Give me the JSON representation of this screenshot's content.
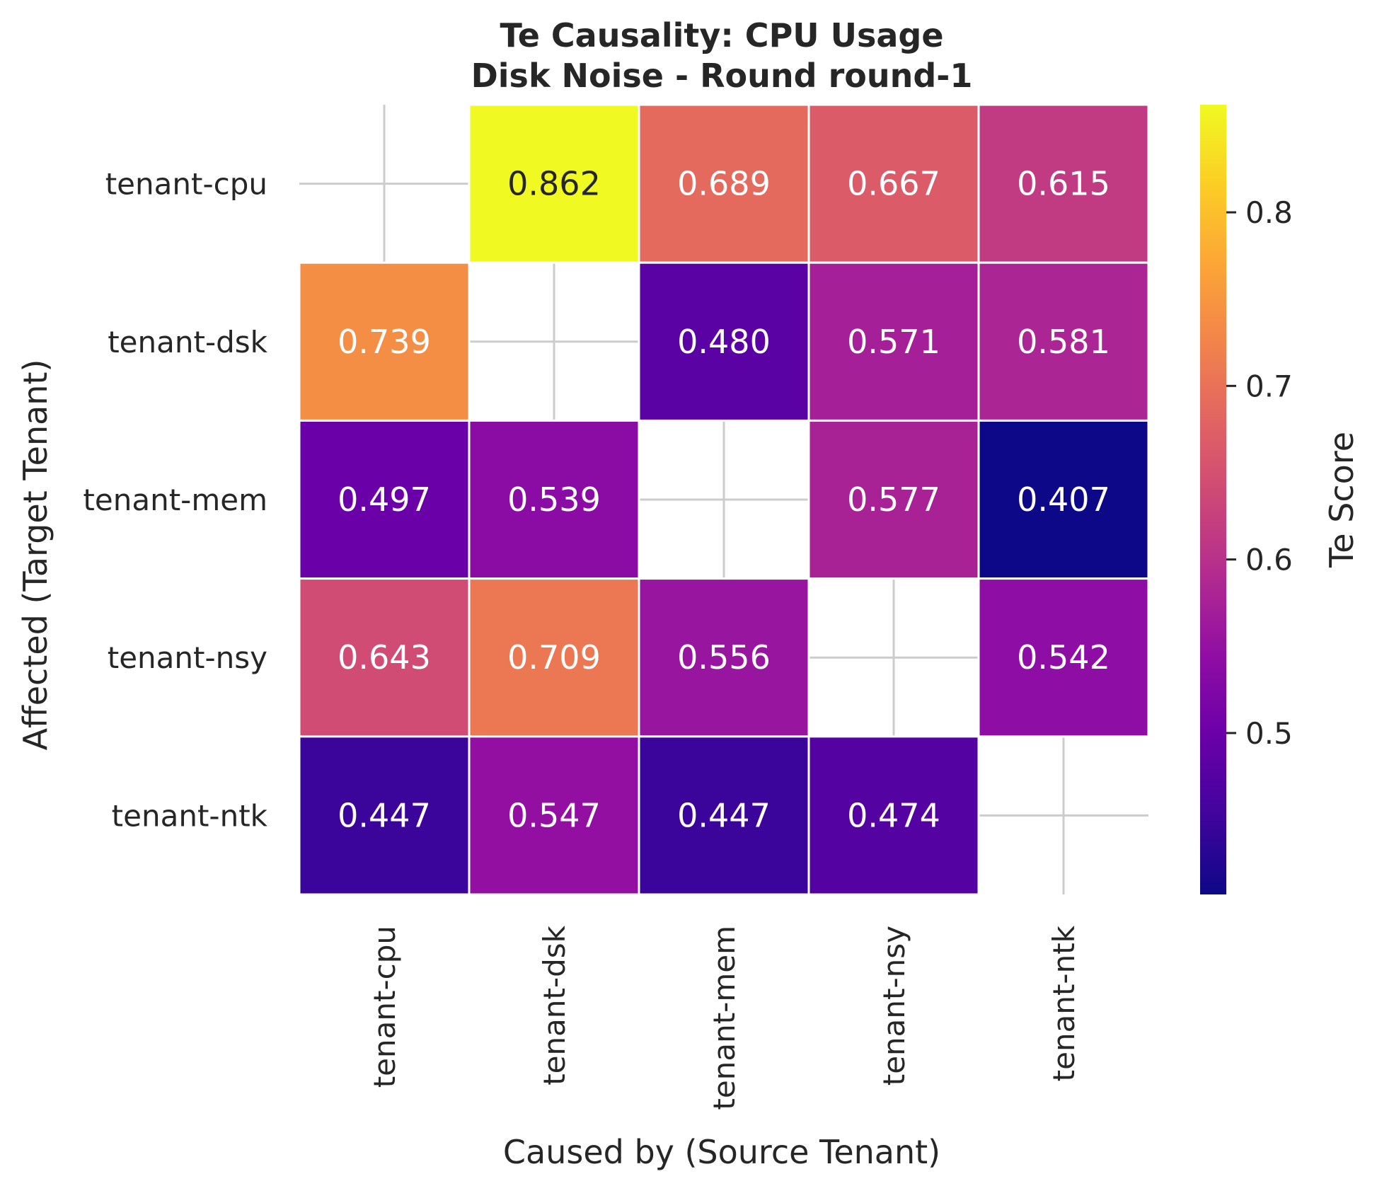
{
  "chart_data": {
    "type": "heatmap",
    "title_lines": [
      "Te Causality: CPU Usage",
      "Disk Noise - Round round-1"
    ],
    "xlabel": "Caused by (Source Tenant)",
    "ylabel": "Affected (Target Tenant)",
    "x_categories": [
      "tenant-cpu",
      "tenant-dsk",
      "tenant-mem",
      "tenant-nsy",
      "tenant-ntk"
    ],
    "y_categories": [
      "tenant-cpu",
      "tenant-dsk",
      "tenant-mem",
      "tenant-nsy",
      "tenant-ntk"
    ],
    "values": [
      [
        null,
        0.862,
        0.689,
        0.667,
        0.615
      ],
      [
        0.739,
        null,
        0.48,
        0.571,
        0.581
      ],
      [
        0.497,
        0.539,
        null,
        0.577,
        0.407
      ],
      [
        0.643,
        0.709,
        0.556,
        null,
        0.542
      ],
      [
        0.447,
        0.547,
        0.447,
        0.474,
        null
      ]
    ],
    "labels": [
      [
        "",
        "0.862",
        "0.689",
        "0.667",
        "0.615"
      ],
      [
        "0.739",
        "",
        "0.480",
        "0.571",
        "0.581"
      ],
      [
        "0.497",
        "0.539",
        "",
        "0.577",
        "0.407"
      ],
      [
        "0.643",
        "0.709",
        "0.556",
        "",
        "0.542"
      ],
      [
        "0.447",
        "0.547",
        "0.447",
        "0.474",
        ""
      ]
    ],
    "colormap": "plasma",
    "vmin": 0.407,
    "vmax": 0.862,
    "colorbar": {
      "label": "Te Score",
      "ticks": [
        0.5,
        0.6,
        0.7,
        0.8
      ],
      "tick_labels": [
        "0.5",
        "0.6",
        "0.7",
        "0.8"
      ]
    },
    "grid": true
  }
}
